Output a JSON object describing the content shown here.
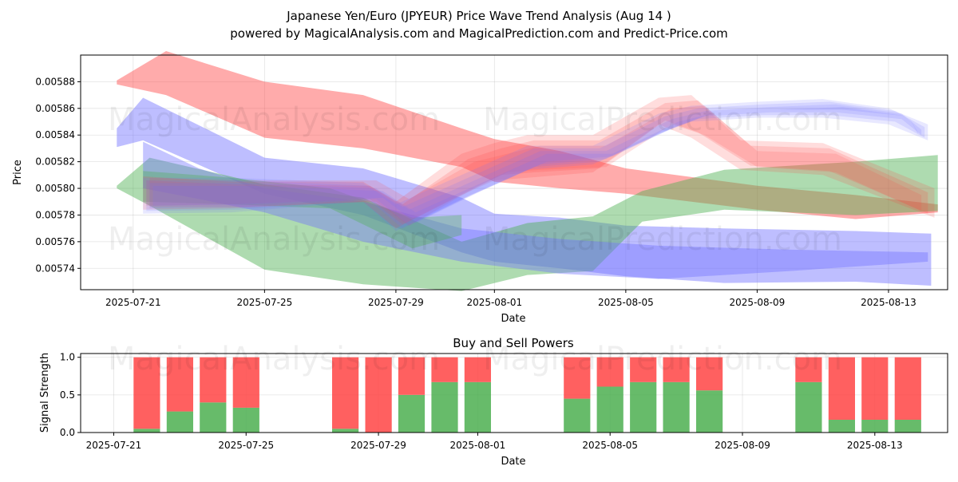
{
  "title": "Japanese Yen/Euro (JPYEUR) Price Wave Trend Analysis (Aug 14 )",
  "subtitle": "powered by MagicalAnalysis.com and MagicalPrediction.com and Predict-Price.com",
  "watermarks": [
    "MagicalAnalysis.com",
    "MagicalPrediction.com"
  ],
  "colors": {
    "red": "#ff4444",
    "green": "#4caf50",
    "blue": "#6f6fff",
    "grid": "#b0b0b0"
  },
  "chart_data": [
    {
      "type": "area",
      "title": "",
      "xlabel": "Date",
      "ylabel": "Price",
      "x_ticks": [
        "2025-07-21",
        "2025-07-25",
        "2025-07-29",
        "2025-08-01",
        "2025-08-05",
        "2025-08-09",
        "2025-08-13"
      ],
      "y_ticks": [
        "0.00574",
        "0.00576",
        "0.00578",
        "0.00580",
        "0.00582",
        "0.00584",
        "0.00586",
        "0.00588"
      ],
      "ylim": [
        0.005724,
        0.0059
      ],
      "x_day_range": [
        -1.6,
        24.8
      ],
      "x_day_origin": "2025-07-21",
      "grid": true,
      "bands": [
        {
          "color": "red",
          "opacity": 0.45,
          "days": [
            -0.5,
            1,
            4,
            7,
            10,
            11,
            13,
            15,
            19,
            22,
            24.5
          ],
          "upper": [
            0.005881,
            0.005903,
            0.00588,
            0.00587,
            0.005845,
            0.005837,
            0.005828,
            0.005815,
            0.005802,
            0.005795,
            0.005788
          ],
          "lower": [
            0.005878,
            0.00587,
            0.005838,
            0.00583,
            0.005816,
            0.005805,
            0.0058,
            0.005796,
            0.005784,
            0.005777,
            0.005782
          ]
        },
        {
          "color": "blue",
          "opacity": 0.45,
          "days": [
            -0.5,
            0.3,
            4,
            7,
            10,
            11,
            13,
            15,
            18,
            22,
            24.3
          ],
          "upper": [
            0.005845,
            0.005868,
            0.005823,
            0.005815,
            0.005793,
            0.005781,
            0.005778,
            0.005772,
            0.00577,
            0.005768,
            0.005766
          ],
          "lower": [
            0.005831,
            0.005836,
            0.005796,
            0.00578,
            0.005752,
            0.005745,
            0.00574,
            0.005734,
            0.005729,
            0.00573,
            0.005727
          ]
        },
        {
          "color": "green",
          "opacity": 0.45,
          "days": [
            -0.5,
            0.5,
            4,
            7,
            10,
            12,
            14,
            15.5,
            18,
            22,
            24.5
          ],
          "upper": [
            0.005802,
            0.005823,
            0.005803,
            0.005793,
            0.00576,
            0.005774,
            0.005779,
            0.005798,
            0.005814,
            0.00582,
            0.005825
          ],
          "lower": [
            0.0058,
            0.005787,
            0.005739,
            0.005728,
            0.005723,
            0.005735,
            0.005738,
            0.005775,
            0.005784,
            0.00578,
            0.005783
          ]
        },
        {
          "color": "blue",
          "opacity": 0.4,
          "days": [
            0.3,
            2,
            4,
            7,
            10,
            13,
            16,
            20,
            24.2
          ],
          "upper": [
            0.005835,
            0.005815,
            0.0058,
            0.00579,
            0.00577,
            0.005762,
            0.005757,
            0.005754,
            0.005752
          ],
          "lower": [
            0.0058,
            0.005792,
            0.005782,
            0.00576,
            0.005745,
            0.005736,
            0.005732,
            0.005738,
            0.005745
          ]
        },
        {
          "color": "green",
          "opacity": 0.35,
          "days": [
            0.3,
            3,
            6,
            8.5,
            10
          ],
          "upper": [
            0.005813,
            0.005808,
            0.0058,
            0.005778,
            0.00578
          ],
          "lower": [
            0.00579,
            0.005788,
            0.005785,
            0.005755,
            0.005765
          ]
        },
        {
          "color": "red",
          "opacity": 0.18,
          "days": [
            0.3,
            3,
            7,
            8,
            10,
            11,
            12,
            14,
            16,
            17,
            18.5,
            21,
            24.4
          ],
          "upper": [
            0.005809,
            0.005805,
            0.005805,
            0.00579,
            0.005826,
            0.005834,
            0.00584,
            0.00584,
            0.005868,
            0.00587,
            0.005836,
            0.005834,
            0.0058
          ],
          "lower": [
            0.005784,
            0.005785,
            0.00579,
            0.00577,
            0.005795,
            0.005806,
            0.005808,
            0.005812,
            0.005848,
            0.005838,
            0.005814,
            0.00581,
            0.005778
          ]
        },
        {
          "color": "red",
          "opacity": 0.18,
          "days": [
            0.4,
            3,
            7.2,
            8.2,
            10.2,
            11.2,
            12.2,
            14.2,
            16.2,
            17.2,
            18.8,
            21.2,
            24.2
          ],
          "upper": [
            0.005806,
            0.005803,
            0.005802,
            0.005788,
            0.005822,
            0.00583,
            0.005836,
            0.005836,
            0.005864,
            0.005866,
            0.005832,
            0.00583,
            0.005797
          ],
          "lower": [
            0.005787,
            0.005788,
            0.005792,
            0.005773,
            0.005798,
            0.00581,
            0.005812,
            0.005815,
            0.005851,
            0.005842,
            0.005817,
            0.005813,
            0.005781
          ]
        },
        {
          "color": "red",
          "opacity": 0.16,
          "days": [
            0.5,
            3.2,
            7.4,
            8.4,
            10.4,
            11.4,
            12.4,
            14.4,
            16.4,
            17.4,
            19,
            21.4,
            24
          ],
          "upper": [
            0.005808,
            0.005806,
            0.005806,
            0.005792,
            0.00582,
            0.005826,
            0.005832,
            0.005832,
            0.00586,
            0.005862,
            0.005828,
            0.005826,
            0.005795
          ],
          "lower": [
            0.005786,
            0.005786,
            0.00579,
            0.005772,
            0.0058,
            0.005812,
            0.005814,
            0.005816,
            0.005848,
            0.00584,
            0.005816,
            0.005812,
            0.005783
          ]
        },
        {
          "color": "blue",
          "opacity": 0.16,
          "days": [
            0.3,
            3,
            7,
            8,
            10,
            12,
            14,
            16,
            17,
            19,
            21,
            23,
            24.2
          ],
          "upper": [
            0.005808,
            0.005808,
            0.005804,
            0.005788,
            0.00581,
            0.005832,
            0.005832,
            0.005856,
            0.005862,
            0.005865,
            0.005867,
            0.00586,
            0.005848
          ],
          "lower": [
            0.005781,
            0.005782,
            0.00579,
            0.005768,
            0.005792,
            0.005814,
            0.005818,
            0.005841,
            0.00585,
            0.005853,
            0.005853,
            0.005848,
            0.005836
          ]
        },
        {
          "color": "blue",
          "opacity": 0.16,
          "days": [
            0.4,
            3.2,
            7.2,
            8.2,
            10.2,
            12.2,
            14.2,
            16.2,
            17.2,
            19.2,
            21.2,
            23.2,
            24.1
          ],
          "upper": [
            0.005806,
            0.005806,
            0.005802,
            0.005786,
            0.005808,
            0.00583,
            0.00583,
            0.005854,
            0.00586,
            0.005863,
            0.005865,
            0.005858,
            0.005846
          ],
          "lower": [
            0.005783,
            0.005784,
            0.005791,
            0.00577,
            0.005794,
            0.005816,
            0.00582,
            0.005843,
            0.005852,
            0.005855,
            0.005855,
            0.00585,
            0.005838
          ]
        },
        {
          "color": "blue",
          "opacity": 0.16,
          "days": [
            0.5,
            3.4,
            7.4,
            8.4,
            10.4,
            12.4,
            14.4,
            16.4,
            17.4,
            19.4,
            21.4,
            23.4,
            24
          ],
          "upper": [
            0.005804,
            0.005804,
            0.0058,
            0.005784,
            0.005806,
            0.005828,
            0.005828,
            0.005852,
            0.005858,
            0.005861,
            0.005863,
            0.005856,
            0.005844
          ],
          "lower": [
            0.005785,
            0.005786,
            0.005792,
            0.005772,
            0.005796,
            0.005818,
            0.005822,
            0.005845,
            0.005854,
            0.005857,
            0.005857,
            0.005852,
            0.00584
          ]
        },
        {
          "color": "blue",
          "opacity": 0.16,
          "days": [
            0.6,
            3.6,
            7.6,
            8.6,
            10.6,
            12.6,
            14.6,
            16.6,
            17.6,
            19.6,
            21.6,
            23.6,
            23.9
          ],
          "upper": [
            0.005802,
            0.005802,
            0.005798,
            0.005782,
            0.005804,
            0.005826,
            0.005826,
            0.00585,
            0.005856,
            0.005859,
            0.005861,
            0.005854,
            0.005842
          ],
          "lower": [
            0.005787,
            0.005788,
            0.005793,
            0.005774,
            0.005798,
            0.00582,
            0.005824,
            0.005847,
            0.005856,
            0.005859,
            0.005859,
            0.005854,
            0.005841
          ]
        }
      ]
    },
    {
      "type": "bar",
      "title": "Buy and Sell Powers",
      "xlabel": "Date",
      "ylabel": "Signal Strength",
      "x_ticks": [
        "2025-07-21",
        "2025-07-25",
        "2025-07-29",
        "2025-08-01",
        "2025-08-05",
        "2025-08-09",
        "2025-08-13"
      ],
      "y_ticks": [
        "0.0",
        "0.5",
        "1.0"
      ],
      "ylim": [
        0,
        1.05
      ],
      "x_day_range": [
        -1.0,
        25.2
      ],
      "x_day_origin": "2025-07-21",
      "categories": [
        "2025-07-22",
        "2025-07-23",
        "2025-07-24",
        "2025-07-25",
        "2025-07-28",
        "2025-07-29",
        "2025-07-30",
        "2025-07-31",
        "2025-08-01",
        "2025-08-04",
        "2025-08-05",
        "2025-08-06",
        "2025-08-07",
        "2025-08-08",
        "2025-08-11",
        "2025-08-12",
        "2025-08-13",
        "2025-08-14"
      ],
      "days": [
        1,
        2,
        3,
        4,
        7,
        8,
        9,
        10,
        11,
        14,
        15,
        16,
        17,
        18,
        21,
        22,
        23,
        24
      ],
      "series": [
        {
          "name": "Buy",
          "color": "green",
          "values": [
            0.05,
            0.28,
            0.4,
            0.33,
            0.05,
            0.0,
            0.5,
            0.67,
            0.67,
            0.45,
            0.61,
            0.67,
            0.67,
            0.56,
            0.67,
            0.17,
            0.17,
            0.17
          ]
        },
        {
          "name": "Sell",
          "color": "red",
          "values": [
            0.95,
            0.72,
            0.6,
            0.67,
            0.95,
            1.0,
            0.5,
            0.33,
            0.33,
            0.55,
            0.39,
            0.33,
            0.33,
            0.44,
            0.33,
            0.83,
            0.83,
            0.83
          ]
        }
      ]
    }
  ]
}
